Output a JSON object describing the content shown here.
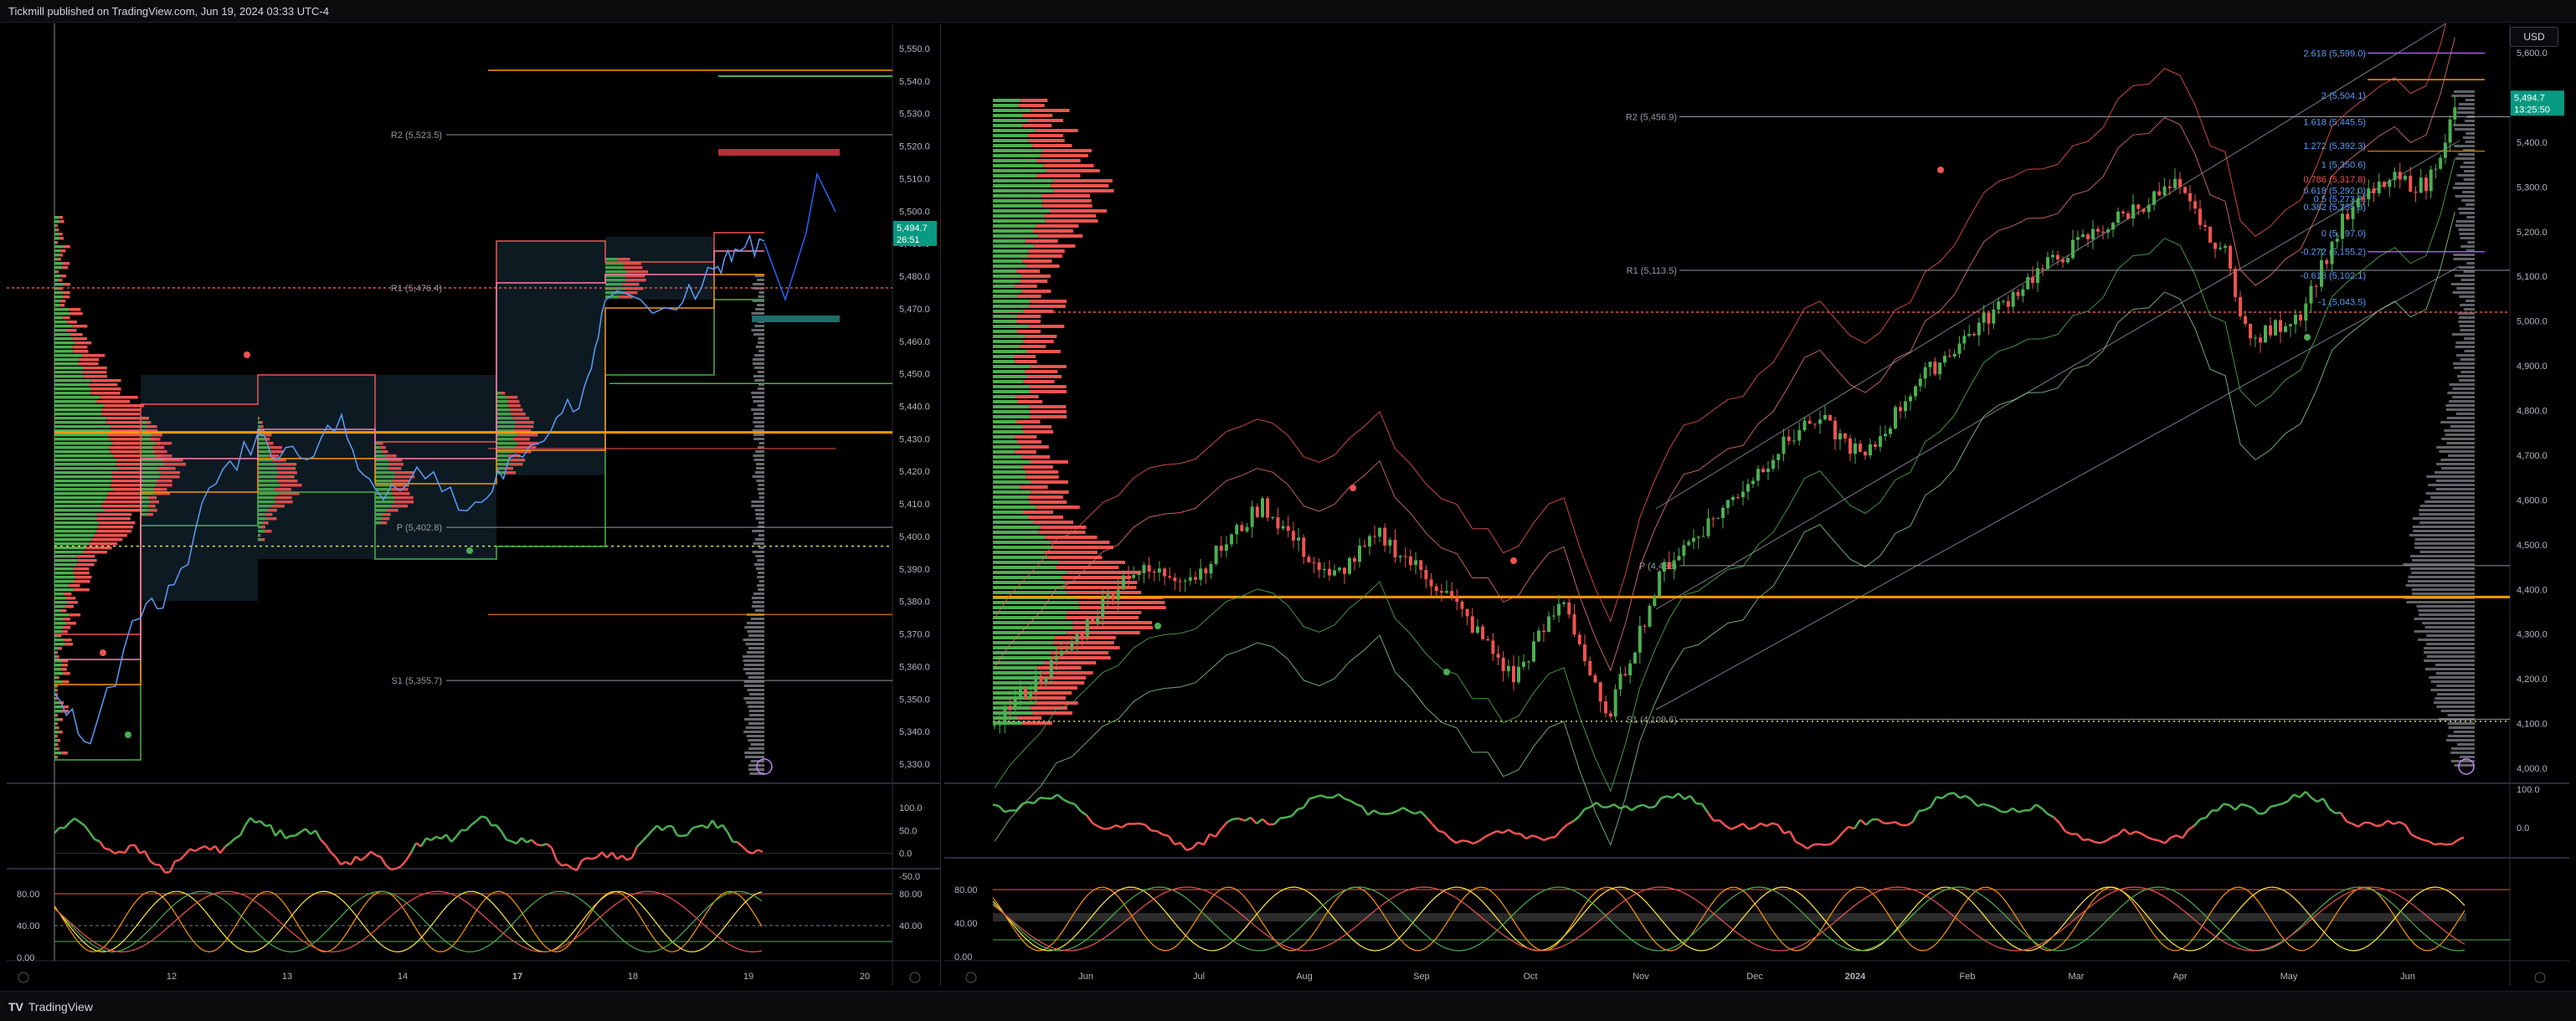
{
  "header": {
    "publisher_text": "Tickmill published on TradingView.com, Jun 19, 2024 03:33 UTC-4"
  },
  "footer": {
    "brand": "TradingView",
    "brand_icon": "tradingview-logo-icon"
  },
  "currency_button": "USD",
  "colors": {
    "bull": "#26a69a",
    "bear": "#ef5350",
    "green": "#4caf50",
    "orange": "#ff9800",
    "blue": "#5b9cf6",
    "price_tag": "#089981"
  },
  "left_chart": {
    "price_axis": [
      "5,550.0",
      "5,540.0",
      "5,530.0",
      "5,520.0",
      "5,510.0",
      "5,500.0",
      "5,490.0",
      "5,480.0",
      "5,470.0",
      "5,460.0",
      "5,450.0",
      "5,440.0",
      "5,430.0",
      "5,420.0",
      "5,410.0",
      "5,400.0",
      "5,390.0",
      "5,380.0",
      "5,370.0",
      "5,360.0",
      "5,350.0",
      "5,340.0",
      "5,330.0"
    ],
    "time_axis": [
      "12",
      "13",
      "14",
      "17",
      "18",
      "19",
      "20"
    ],
    "pivot_labels": [
      {
        "label": "R2 (5,523.5)",
        "value": 5523.5
      },
      {
        "label": "R1 (5,476.4)",
        "value": 5476.4
      },
      {
        "label": "P (5,402.8)",
        "value": 5402.8
      },
      {
        "label": "S1 (5,355.7)",
        "value": 5355.7
      }
    ],
    "last_price": "5,494.7",
    "countdown": "26:51",
    "osc1_axis": [
      "100.0",
      "50.0",
      "0.0",
      "-50.0"
    ],
    "osc2_axis_left": [
      "80.00",
      "40.00",
      "0.00"
    ],
    "osc2_axis_right": [
      "80.00",
      "40.00"
    ]
  },
  "right_chart": {
    "price_axis": [
      "5,600.0",
      "5,500.0",
      "5,400.0",
      "5,300.0",
      "5,200.0",
      "5,100.0",
      "5,000.0",
      "4,900.0",
      "4,800.0",
      "4,700.0",
      "4,600.0",
      "4,500.0",
      "4,400.0",
      "4,300.0",
      "4,200.0",
      "4,100.0",
      "4,000.0"
    ],
    "time_axis": [
      "Jun",
      "Jul",
      "Aug",
      "Sep",
      "Oct",
      "Nov",
      "Dec",
      "2024",
      "Feb",
      "Mar",
      "Apr",
      "May",
      "Jun"
    ],
    "pivot_labels": [
      {
        "label": "R2 (5,456.9)",
        "value": 5456.9
      },
      {
        "label": "R1 (5,113.5)",
        "value": 5113.5
      },
      {
        "label": "P (4,453)",
        "value": 4453
      },
      {
        "label": "S1 (4,109.6)",
        "value": 4109.6
      }
    ],
    "fib_labels": [
      {
        "label": "2.618 (5,599.0)",
        "value": 5599.0
      },
      {
        "label": "2 (5,504.1)",
        "value": 5504.1
      },
      {
        "label": "1.618 (5,445.5)",
        "value": 5445.5
      },
      {
        "label": "1.272 (5,392.3)",
        "value": 5392.3
      },
      {
        "label": "1 (5,350.6)",
        "value": 5350.6
      },
      {
        "label": "0.786 (5,317.8)",
        "value": 5317.8
      },
      {
        "label": "0.618 (5,292.0)",
        "value": 5292.0
      },
      {
        "label": "0.5 (5,273.9)",
        "value": 5273.9
      },
      {
        "label": "0.382 (5,255.8)",
        "value": 5255.8
      },
      {
        "label": "0 (5,197.0)",
        "value": 5197.0
      },
      {
        "label": "-0.272 (5,155.2)",
        "value": 5155.2
      },
      {
        "label": "-0.618 (5,102.1)",
        "value": 5102.1
      },
      {
        "label": "-1 (5,043.5)",
        "value": 5043.5
      }
    ],
    "last_price": "5,494.7",
    "countdown": "13:25:50",
    "osc1_axis": [
      "100.0",
      "0.0"
    ],
    "osc2_axis": [
      "80.00",
      "40.00",
      "0.00"
    ]
  }
}
